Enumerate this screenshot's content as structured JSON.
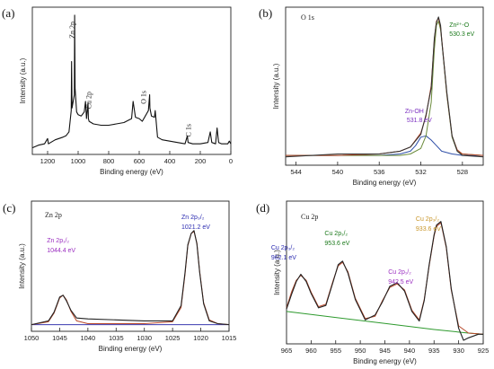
{
  "chart_data": [
    {
      "id": "a",
      "type": "line",
      "panel_label": "(a)",
      "xlabel": "Binding energy (eV)",
      "ylabel": "Intensity (a.u.)",
      "xlim": [
        1300,
        0
      ],
      "xticks": [
        1200,
        1000,
        800,
        600,
        400,
        200,
        0
      ],
      "series": [
        {
          "color": "#111111",
          "x": [
            1300,
            1260,
            1220,
            1200,
            1195,
            1180,
            1150,
            1100,
            1080,
            1060,
            1045,
            1043,
            1040,
            1025,
            1023,
            1020,
            1010,
            1000,
            980,
            960,
            952,
            945,
            935,
            933,
            928,
            900,
            850,
            800,
            750,
            700,
            650,
            640,
            625,
            600,
            580,
            560,
            540,
            532,
            530,
            520,
            500,
            495,
            480,
            450,
            400,
            350,
            300,
            285,
            280,
            250,
            200,
            150,
            135,
            125,
            100,
            90,
            80,
            60,
            20,
            10,
            0
          ],
          "y": [
            0.0,
            0.02,
            0.03,
            0.07,
            0.03,
            0.04,
            0.06,
            0.08,
            0.09,
            0.12,
            0.28,
            0.65,
            0.3,
            0.4,
            1.0,
            0.45,
            0.27,
            0.25,
            0.24,
            0.27,
            0.35,
            0.22,
            0.34,
            0.22,
            0.2,
            0.18,
            0.17,
            0.17,
            0.18,
            0.19,
            0.22,
            0.35,
            0.23,
            0.22,
            0.2,
            0.24,
            0.28,
            0.4,
            0.3,
            0.24,
            0.23,
            0.28,
            0.08,
            0.06,
            0.05,
            0.04,
            0.03,
            0.09,
            0.04,
            0.03,
            0.03,
            0.04,
            0.12,
            0.04,
            0.03,
            0.15,
            0.04,
            0.03,
            0.03,
            0.05,
            0.03
          ]
        }
      ],
      "annotations": [
        {
          "text": "Zn 2p",
          "x": 1023
        },
        {
          "text": "Cu 2p",
          "x": 945
        },
        {
          "text": "O 1s",
          "x": 531
        },
        {
          "text": "C 1s",
          "x": 285
        }
      ]
    },
    {
      "id": "b",
      "type": "line",
      "panel_label": "(b)",
      "title": "O 1s",
      "xlabel": "Binding energy (eV)",
      "ylabel": "Intensity (a.u.)",
      "xlim": [
        545,
        526
      ],
      "xticks": [
        544,
        540,
        536,
        532,
        528
      ],
      "series": [
        {
          "color": "#2f4fa8",
          "x": [
            545,
            540,
            536,
            534,
            533,
            532.5,
            532,
            531.5,
            531,
            530.5,
            530,
            529,
            528,
            526
          ],
          "y": [
            0.02,
            0.02,
            0.02,
            0.03,
            0.05,
            0.09,
            0.15,
            0.16,
            0.13,
            0.09,
            0.05,
            0.03,
            0.02,
            0.02
          ]
        },
        {
          "color": "#6a8a3a",
          "x": [
            545,
            534,
            533,
            532,
            531.5,
            531,
            530.7,
            530.5,
            530.3,
            530.1,
            530,
            529.5,
            529,
            528.5,
            528,
            526
          ],
          "y": [
            0.02,
            0.02,
            0.03,
            0.07,
            0.16,
            0.4,
            0.78,
            0.95,
            0.98,
            0.92,
            0.85,
            0.45,
            0.15,
            0.05,
            0.03,
            0.02
          ]
        },
        {
          "color": "#b8482a",
          "x": [
            545,
            540,
            536,
            534,
            533,
            532,
            531.5,
            531,
            530.7,
            530.5,
            530.3,
            530.1,
            530,
            529.5,
            529,
            528.5,
            528,
            526
          ],
          "y": [
            0.02,
            0.02,
            0.03,
            0.05,
            0.08,
            0.18,
            0.3,
            0.52,
            0.85,
            0.98,
            1.0,
            0.94,
            0.86,
            0.46,
            0.16,
            0.06,
            0.03,
            0.02
          ]
        },
        {
          "color": "#333333",
          "x": [
            545,
            540,
            536,
            534,
            533,
            532,
            531.5,
            531,
            530.7,
            530.5,
            530.3,
            530.1,
            530,
            529.5,
            529,
            528.5,
            528,
            526
          ],
          "y": [
            0.01,
            0.03,
            0.03,
            0.05,
            0.08,
            0.17,
            0.31,
            0.5,
            0.86,
            0.97,
            1.01,
            0.95,
            0.85,
            0.47,
            0.16,
            0.05,
            0.02,
            0.01
          ]
        }
      ],
      "annotations": [
        {
          "text": "Zn²⁺-O",
          "x": 530.3,
          "color": "#1d7a1d"
        },
        {
          "text": "530.3 eV",
          "x": 530.3,
          "color": "#1d7a1d"
        },
        {
          "text": "Zn-OH",
          "x": 531.8,
          "color": "#7b2fc0"
        },
        {
          "text": "531.8 eV",
          "x": 531.8,
          "color": "#7b2fc0"
        }
      ]
    },
    {
      "id": "c",
      "type": "line",
      "panel_label": "(c)",
      "title": "Zn 2p",
      "xlabel": "Binding energy (eV)",
      "ylabel": "Intensity (a.u.)",
      "xlim": [
        1050,
        1015
      ],
      "xticks": [
        1050,
        1045,
        1040,
        1035,
        1030,
        1025,
        1020,
        1015
      ],
      "series": [
        {
          "color": "#3a3ab0",
          "x": [
            1050,
            1015
          ],
          "y": [
            0.02,
            0.02
          ]
        },
        {
          "color": "#b8482a",
          "x": [
            1050,
            1047,
            1046,
            1045.5,
            1045,
            1044.4,
            1043.8,
            1043,
            1042,
            1040,
            1030,
            1025,
            1023.5,
            1022.8,
            1022.3,
            1021.7,
            1021.2,
            1020.7,
            1020.2,
            1019.5,
            1018.5,
            1017,
            1015
          ],
          "y": [
            0.02,
            0.05,
            0.14,
            0.22,
            0.3,
            0.33,
            0.28,
            0.16,
            0.06,
            0.03,
            0.03,
            0.05,
            0.2,
            0.55,
            0.85,
            0.98,
            1.0,
            0.88,
            0.58,
            0.25,
            0.07,
            0.03,
            0.02
          ]
        },
        {
          "color": "#222222",
          "x": [
            1050,
            1047,
            1046,
            1045.5,
            1045,
            1044.4,
            1043.8,
            1043,
            1042,
            1040,
            1035,
            1030,
            1025,
            1023.5,
            1022.8,
            1022.3,
            1021.7,
            1021.2,
            1020.7,
            1020.2,
            1019.5,
            1018.5,
            1017,
            1015
          ],
          "y": [
            0.02,
            0.06,
            0.15,
            0.23,
            0.31,
            0.33,
            0.27,
            0.17,
            0.09,
            0.08,
            0.07,
            0.06,
            0.06,
            0.22,
            0.57,
            0.86,
            0.98,
            1.01,
            0.87,
            0.57,
            0.24,
            0.06,
            0.03,
            0.02
          ]
        }
      ],
      "annotations": [
        {
          "text": "Zn 2p₃/₂",
          "x": 1021.2,
          "color": "#2a2ab0"
        },
        {
          "text": "1021.2 eV",
          "x": 1021.2,
          "color": "#2a2ab0"
        },
        {
          "text": "Zn 2p₁/₂",
          "x": 1044.4,
          "color": "#9b2fc0"
        },
        {
          "text": "1044.4 eV",
          "x": 1044.4,
          "color": "#9b2fc0"
        }
      ]
    },
    {
      "id": "d",
      "type": "line",
      "panel_label": "(d)",
      "title": "Cu 2p",
      "xlabel": "Binding energy (eV)",
      "ylabel": "Intensity (a.u.)",
      "xlim": [
        965,
        925
      ],
      "xticks": [
        965,
        960,
        955,
        950,
        945,
        940,
        935,
        930,
        925
      ],
      "series": [
        {
          "color": "#2e9a2e",
          "x": [
            965,
            955,
            945,
            935,
            928,
            925
          ],
          "y": [
            0.22,
            0.17,
            0.12,
            0.07,
            0.04,
            0.03
          ]
        },
        {
          "color": "#b8482a",
          "x": [
            965,
            964,
            963,
            962.1,
            961,
            960,
            958.5,
            957,
            955.5,
            954.5,
            953.6,
            952.5,
            951,
            949,
            947,
            945.5,
            944,
            942.5,
            941,
            939.5,
            938,
            937,
            936,
            935,
            934.5,
            933.6,
            932.5,
            931.5,
            930,
            928,
            925
          ],
          "y": [
            0.25,
            0.38,
            0.48,
            0.52,
            0.48,
            0.38,
            0.26,
            0.28,
            0.48,
            0.6,
            0.63,
            0.55,
            0.33,
            0.16,
            0.18,
            0.31,
            0.42,
            0.45,
            0.4,
            0.23,
            0.15,
            0.32,
            0.6,
            0.85,
            0.93,
            0.96,
            0.75,
            0.4,
            0.1,
            0.04,
            0.03
          ]
        },
        {
          "color": "#222222",
          "x": [
            965,
            964,
            963,
            962.1,
            961,
            960,
            958.5,
            957,
            955.5,
            954.5,
            953.6,
            952.5,
            951,
            949,
            947,
            945.5,
            944,
            942.5,
            941,
            939.5,
            938,
            937,
            936,
            935,
            934.5,
            933.6,
            932.5,
            931.5,
            930,
            929,
            928,
            926,
            925
          ],
          "y": [
            0.24,
            0.36,
            0.47,
            0.53,
            0.47,
            0.37,
            0.25,
            0.27,
            0.47,
            0.61,
            0.64,
            0.54,
            0.32,
            0.15,
            0.19,
            0.3,
            0.43,
            0.46,
            0.39,
            0.22,
            0.14,
            0.31,
            0.61,
            0.86,
            0.94,
            0.97,
            0.76,
            0.41,
            0.08,
            -0.02,
            0.0,
            0.03,
            0.03
          ]
        }
      ],
      "annotations": [
        {
          "text": "Cu 2p₃/₂",
          "x": 933.6,
          "color": "#c8962a"
        },
        {
          "text": "933.6 eV",
          "x": 933.6,
          "color": "#c8962a"
        },
        {
          "text": "Cu 2p₁/₂",
          "x": 953.6,
          "color": "#1d7a1d"
        },
        {
          "text": "953.6 eV",
          "x": 953.6,
          "color": "#1d7a1d"
        },
        {
          "text": "Cu 2p₃/₂",
          "x": 962.1,
          "color": "#2a2ab0"
        },
        {
          "text": "962.1 eV",
          "x": 962.1,
          "color": "#2a2ab0"
        },
        {
          "text": "Cu 2p₁/₂",
          "x": 942.5,
          "color": "#9b2fc0"
        },
        {
          "text": "942.5 eV",
          "x": 942.5,
          "color": "#9b2fc0"
        }
      ]
    }
  ]
}
